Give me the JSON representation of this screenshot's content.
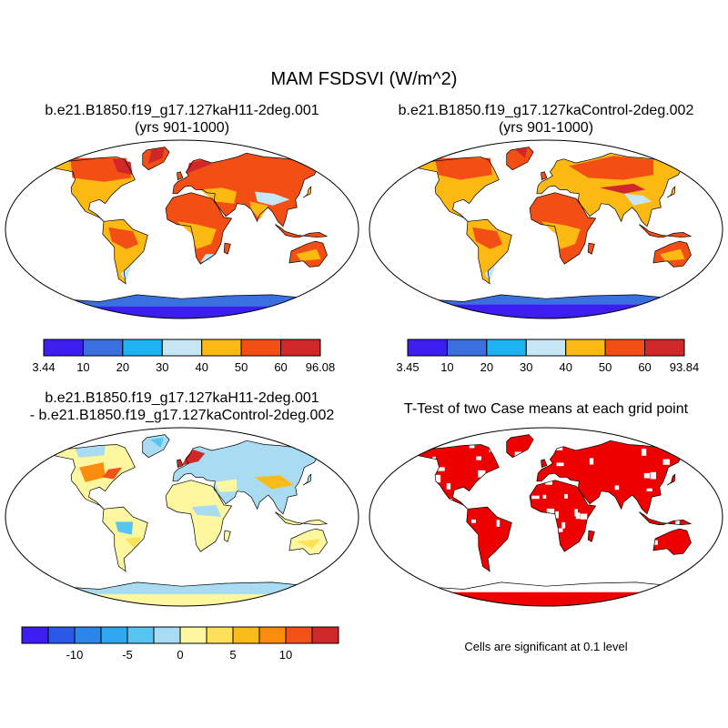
{
  "title": "MAM FSDSVI (W/m^2)",
  "panels": [
    {
      "title_line1": "b.e21.B1850.f19_g17.127kaH11-2deg.001",
      "title_line2": "(yrs 901-1000)"
    },
    {
      "title_line1": "b.e21.B1850.f19_g17.127kaControl-2deg.002",
      "title_line2": "(yrs 901-1000)"
    },
    {
      "title_line1": "b.e21.B1850.f19_g17.127kaH11-2deg.001",
      "title_line2": "- b.e21.B1850.f19_g17.127kaControl-2deg.002"
    },
    {
      "title_line1": "T-Test of two Case means at each grid point",
      "title_line2": ""
    }
  ],
  "significance_note": "Cells are significant at 0.1 level",
  "colorbars": [
    {
      "labels": [
        "3.44",
        "10",
        "20",
        "30",
        "40",
        "50",
        "60",
        "96.08"
      ],
      "colors": [
        "#3c1ef0",
        "#3a6fe0",
        "#1fb2f2",
        "#c6e6f5",
        "#fbb912",
        "#f34e14",
        "#d0282a"
      ]
    },
    {
      "labels": [
        "3.45",
        "10",
        "20",
        "30",
        "40",
        "50",
        "60",
        "93.84"
      ],
      "colors": [
        "#3c1ef0",
        "#3a6fe0",
        "#1fb2f2",
        "#c6e6f5",
        "#fbb912",
        "#f34e14",
        "#d0282a"
      ]
    },
    {
      "labels": [
        "-10",
        "-5",
        "0",
        "5",
        "10"
      ],
      "label_boundaries": [
        2,
        4,
        6,
        8,
        10
      ],
      "colors": [
        "#3c1ef0",
        "#2a58e8",
        "#2c86ea",
        "#31a8ee",
        "#56c5f2",
        "#a9dcf2",
        "#fdf7a0",
        "#fde15a",
        "#fbbb18",
        "#fa8c0e",
        "#f3501a",
        "#d0282a"
      ]
    }
  ],
  "colors": {
    "significant": "#ee0000",
    "land_outline": "#000000",
    "ocean": "#ffffff"
  }
}
